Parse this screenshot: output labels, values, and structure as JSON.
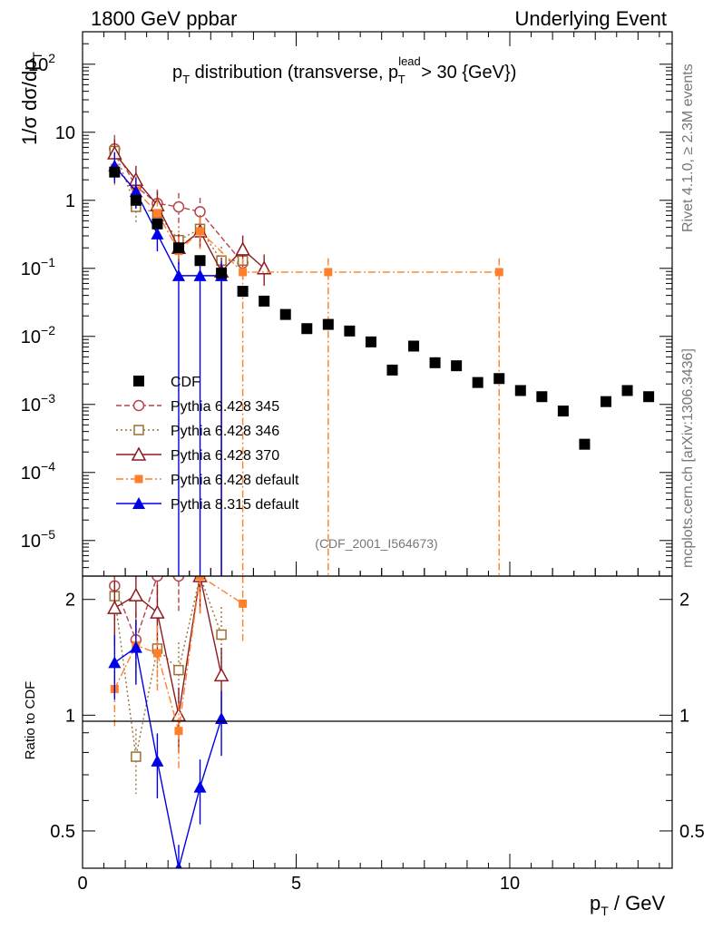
{
  "header": {
    "left": "1800 GeV ppbar",
    "right": "Underlying Event",
    "title_main": "p",
    "title_sub": "T",
    "title_rest": " distribution (transverse, p",
    "title_sup": "lead",
    "title_sub2": "T",
    "title_end": " > 30 {GeV})"
  },
  "side": {
    "rivet": "Rivet 4.1.0, ≥ 2.3M events",
    "mcplots": "mcplots.cern.ch [arXiv:1306.3436]"
  },
  "watermark": "(CDF_2001_I564673)",
  "axes": {
    "y_label_main": "1/σ  dσ/dp",
    "y_label_sub": "T",
    "ratio_label": "Ratio to CDF",
    "x_label_main": "p",
    "x_label_sub": "T",
    "x_label_rest": " / GeV"
  },
  "chart_data": {
    "type": "scatter",
    "x_range": [
      0,
      13.8
    ],
    "main_y_range": [
      3e-06,
      300
    ],
    "main_y_scale": "log",
    "ratio_y_range": [
      0.4,
      2.3
    ],
    "ratio_y_scale": "log",
    "x_ticks": [
      {
        "value": 0,
        "label": "0"
      },
      {
        "value": 5,
        "label": "5"
      },
      {
        "value": 10,
        "label": "10"
      }
    ],
    "main_y_ticks": [
      {
        "exp": 2,
        "label_base": "10",
        "label_exp": "2"
      },
      {
        "exp": 1,
        "label_base": "10",
        "label_exp": ""
      },
      {
        "exp": 0,
        "label_base": "1",
        "label_exp": ""
      },
      {
        "exp": -1,
        "label_base": "10",
        "label_exp": "−1"
      },
      {
        "exp": -2,
        "label_base": "10",
        "label_exp": "−2"
      },
      {
        "exp": -3,
        "label_base": "10",
        "label_exp": "−3"
      },
      {
        "exp": -4,
        "label_base": "10",
        "label_exp": "−4"
      },
      {
        "exp": -5,
        "label_base": "10",
        "label_exp": "−5"
      }
    ],
    "ratio_y_ticks": [
      {
        "value": 0.5,
        "label": "0.5"
      },
      {
        "value": 1,
        "label": "1"
      },
      {
        "value": 2,
        "label": "2"
      }
    ],
    "legend_position": "lower-left",
    "series": [
      {
        "name": "CDF",
        "color": "#000000",
        "marker": "square-filled",
        "dash": "",
        "x": [
          0.75,
          1.25,
          1.75,
          2.25,
          2.75,
          3.25,
          3.75,
          4.25,
          4.75,
          5.25,
          5.75,
          6.25,
          6.75,
          7.25,
          7.75,
          8.25,
          8.75,
          9.25,
          9.75,
          10.25,
          10.75,
          11.25,
          11.75,
          12.25,
          12.75,
          13.25
        ],
        "y": [
          2.6,
          1.0,
          0.45,
          0.2,
          0.13,
          0.085,
          0.046,
          0.033,
          0.021,
          0.013,
          0.015,
          0.012,
          0.0083,
          0.0032,
          0.0072,
          0.0041,
          0.0037,
          0.0021,
          0.0024,
          0.0016,
          0.0013,
          0.0008,
          0.00026,
          0.0011,
          0.0016,
          0.0013
        ],
        "ratio": [],
        "ratio_x": []
      },
      {
        "name": "Pythia 6.428 345",
        "color": "#b4464b",
        "marker": "circle-open",
        "dash": "6,3",
        "x": [
          0.75,
          1.25,
          1.75,
          2.25,
          2.75,
          3.75
        ],
        "y": [
          5.7,
          1.6,
          0.9,
          0.8,
          0.68,
          0.12
        ],
        "ratio_x": [
          0.75,
          1.25,
          1.75,
          2.25
        ],
        "ratio": [
          2.17,
          1.57,
          2.3,
          2.3
        ]
      },
      {
        "name": "Pythia 6.428 346",
        "color": "#9b7033",
        "marker": "square-open",
        "dash": "2,3",
        "x": [
          0.75,
          1.25,
          1.75,
          2.25,
          2.75,
          3.25,
          3.75
        ],
        "y": [
          5.3,
          0.8,
          0.65,
          0.26,
          0.38,
          0.13,
          0.13
        ],
        "ratio_x": [
          0.75,
          1.25,
          1.75,
          2.25,
          2.75,
          3.25
        ],
        "ratio": [
          2.04,
          0.78,
          1.49,
          1.31,
          2.3,
          1.62
        ]
      },
      {
        "name": "Pythia 6.428 370",
        "color": "#8c1a1f",
        "marker": "triangle-open",
        "dash": "",
        "x": [
          0.75,
          1.25,
          1.75,
          2.25,
          2.75,
          3.25,
          3.75,
          4.25
        ],
        "y": [
          4.9,
          2.0,
          0.85,
          0.2,
          0.35,
          0.09,
          0.19,
          0.1
        ],
        "ratio_x": [
          0.75,
          1.25,
          1.75,
          2.25,
          2.75,
          3.25
        ],
        "ratio": [
          1.9,
          2.05,
          1.85,
          1.0,
          2.3,
          1.27
        ]
      },
      {
        "name": "Pythia 6.428 default",
        "color": "#ff7f2a",
        "marker": "square-filled-small",
        "dash": "8,3,2,3",
        "x": [
          0.75,
          1.25,
          1.75,
          2.25,
          2.75,
          3.75,
          5.75,
          9.75
        ],
        "y": [
          3.0,
          1.4,
          0.65,
          0.18,
          0.35,
          0.088,
          0.088,
          0.088
        ],
        "ratio_x": [
          0.75,
          1.25,
          1.75,
          2.25,
          2.75,
          3.75
        ],
        "ratio": [
          1.17,
          1.52,
          1.45,
          0.91,
          2.3,
          1.95
        ]
      },
      {
        "name": "Pythia 8.315 default",
        "color": "#0000e6",
        "marker": "triangle-filled",
        "dash": "",
        "x": [
          0.75,
          1.25,
          1.75,
          2.25,
          2.75,
          3.25
        ],
        "y": [
          3.2,
          1.35,
          0.32,
          0.078,
          0.078,
          0.078
        ],
        "ratio_x": [
          0.75,
          1.25,
          1.75,
          2.25,
          2.75,
          3.25
        ],
        "ratio": [
          1.37,
          1.5,
          0.76,
          0.39,
          0.65,
          0.98
        ]
      }
    ]
  }
}
